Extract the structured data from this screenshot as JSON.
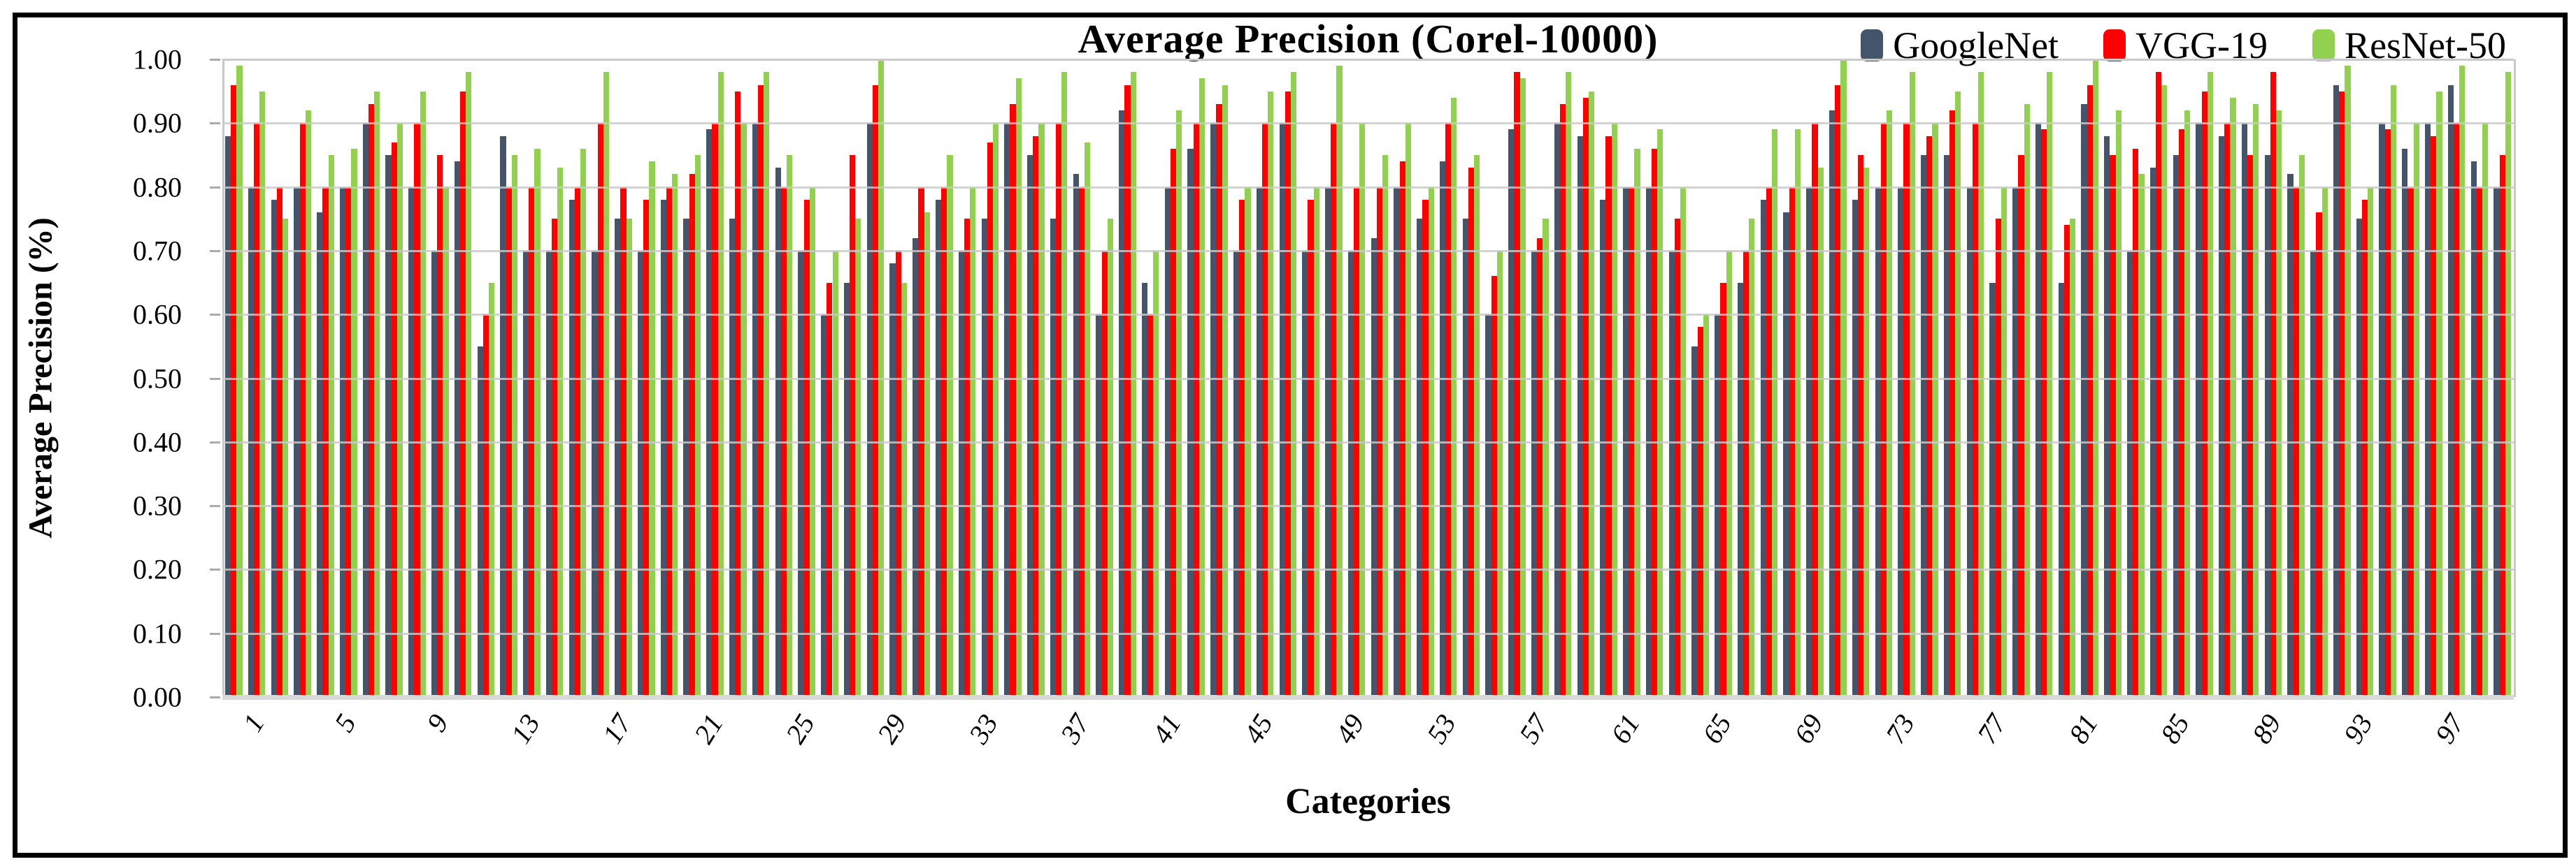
{
  "figure": {
    "background": "#FFFFFF",
    "border_color": "#000000"
  },
  "chart_data": {
    "type": "bar",
    "title": "Average Precision (Corel-10000)",
    "xlabel": "Categories",
    "ylabel": "Average Precision (%)",
    "ylim": [
      0.0,
      1.0
    ],
    "ytick_step": 0.1,
    "ytick_labels": [
      "1.00",
      "0.90",
      "0.80",
      "0.70",
      "0.60",
      "0.50",
      "0.40",
      "0.30",
      "0.20",
      "0.10",
      "0.00"
    ],
    "n_categories": 100,
    "xtick_start": 1,
    "xtick_step": 4,
    "xtick_labels": [
      "1",
      "5",
      "9",
      "13",
      "17",
      "21",
      "25",
      "29",
      "33",
      "37",
      "41",
      "45",
      "49",
      "53",
      "57",
      "61",
      "65",
      "69",
      "73",
      "77",
      "81",
      "85",
      "89",
      "93",
      "97"
    ],
    "grid": true,
    "legend_position": "top-right",
    "colors": {
      "gridline": "#C9C9C9",
      "baseline": "#D9D9D9"
    },
    "series": [
      {
        "name": "GoogleNet",
        "color": "#44546A",
        "values": [
          0.88,
          0.8,
          0.78,
          0.8,
          0.76,
          0.8,
          0.9,
          0.85,
          0.8,
          0.7,
          0.84,
          0.55,
          0.88,
          0.7,
          0.7,
          0.78,
          0.7,
          0.75,
          0.7,
          0.78,
          0.75,
          0.89,
          0.75,
          0.9,
          0.83,
          0.7,
          0.6,
          0.65,
          0.9,
          0.68,
          0.72,
          0.78,
          0.7,
          0.75,
          0.9,
          0.85,
          0.75,
          0.82,
          0.6,
          0.92,
          0.65,
          0.8,
          0.86,
          0.9,
          0.7,
          0.8,
          0.9,
          0.7,
          0.8,
          0.7,
          0.72,
          0.8,
          0.75,
          0.84,
          0.75,
          0.6,
          0.89,
          0.7,
          0.9,
          0.88,
          0.78,
          0.8,
          0.8,
          0.7,
          0.55,
          0.6,
          0.65,
          0.78,
          0.76,
          0.8,
          0.92,
          0.78,
          0.8,
          0.8,
          0.85,
          0.85,
          0.8,
          0.65,
          0.8,
          0.9,
          0.65,
          0.93,
          0.88,
          0.7,
          0.83,
          0.85,
          0.9,
          0.88,
          0.9,
          0.85,
          0.82,
          0.7,
          0.96,
          0.75,
          0.9,
          0.86,
          0.9,
          0.96,
          0.84,
          0.8
        ]
      },
      {
        "name": "VGG-19",
        "color": "#FF0000",
        "values": [
          0.96,
          0.9,
          0.8,
          0.9,
          0.8,
          0.8,
          0.93,
          0.87,
          0.9,
          0.85,
          0.95,
          0.6,
          0.8,
          0.8,
          0.75,
          0.8,
          0.9,
          0.8,
          0.78,
          0.8,
          0.82,
          0.9,
          0.95,
          0.96,
          0.8,
          0.78,
          0.65,
          0.85,
          0.96,
          0.7,
          0.8,
          0.8,
          0.75,
          0.87,
          0.93,
          0.88,
          0.9,
          0.8,
          0.7,
          0.96,
          0.6,
          0.86,
          0.9,
          0.93,
          0.78,
          0.9,
          0.95,
          0.78,
          0.9,
          0.8,
          0.8,
          0.84,
          0.78,
          0.9,
          0.83,
          0.66,
          0.98,
          0.72,
          0.93,
          0.94,
          0.88,
          0.8,
          0.86,
          0.75,
          0.58,
          0.65,
          0.7,
          0.8,
          0.8,
          0.9,
          0.96,
          0.85,
          0.9,
          0.9,
          0.88,
          0.92,
          0.9,
          0.75,
          0.85,
          0.89,
          0.74,
          0.96,
          0.85,
          0.86,
          0.98,
          0.89,
          0.95,
          0.9,
          0.85,
          0.98,
          0.8,
          0.76,
          0.95,
          0.78,
          0.89,
          0.8,
          0.88,
          0.9,
          0.8,
          0.85
        ]
      },
      {
        "name": "ResNet-50",
        "color": "#92D050",
        "values": [
          0.99,
          0.95,
          0.75,
          0.92,
          0.85,
          0.86,
          0.95,
          0.9,
          0.95,
          0.8,
          0.98,
          0.65,
          0.85,
          0.86,
          0.83,
          0.86,
          0.98,
          0.75,
          0.84,
          0.82,
          0.85,
          0.98,
          0.9,
          0.98,
          0.85,
          0.8,
          0.7,
          0.75,
          1.0,
          0.65,
          0.76,
          0.85,
          0.8,
          0.9,
          0.97,
          0.9,
          0.98,
          0.87,
          0.75,
          0.98,
          0.7,
          0.92,
          0.97,
          0.96,
          0.8,
          0.95,
          0.98,
          0.8,
          0.99,
          0.9,
          0.85,
          0.9,
          0.8,
          0.94,
          0.85,
          0.7,
          0.97,
          0.75,
          0.98,
          0.95,
          0.9,
          0.86,
          0.89,
          0.8,
          0.6,
          0.7,
          0.75,
          0.89,
          0.89,
          0.83,
          1.0,
          0.83,
          0.92,
          0.98,
          0.9,
          0.95,
          0.98,
          0.8,
          0.93,
          0.98,
          0.75,
          1.0,
          0.92,
          0.82,
          0.96,
          0.92,
          0.98,
          0.94,
          0.93,
          0.92,
          0.85,
          0.8,
          0.99,
          0.8,
          0.96,
          0.9,
          0.95,
          0.99,
          0.9,
          0.98
        ]
      }
    ]
  }
}
